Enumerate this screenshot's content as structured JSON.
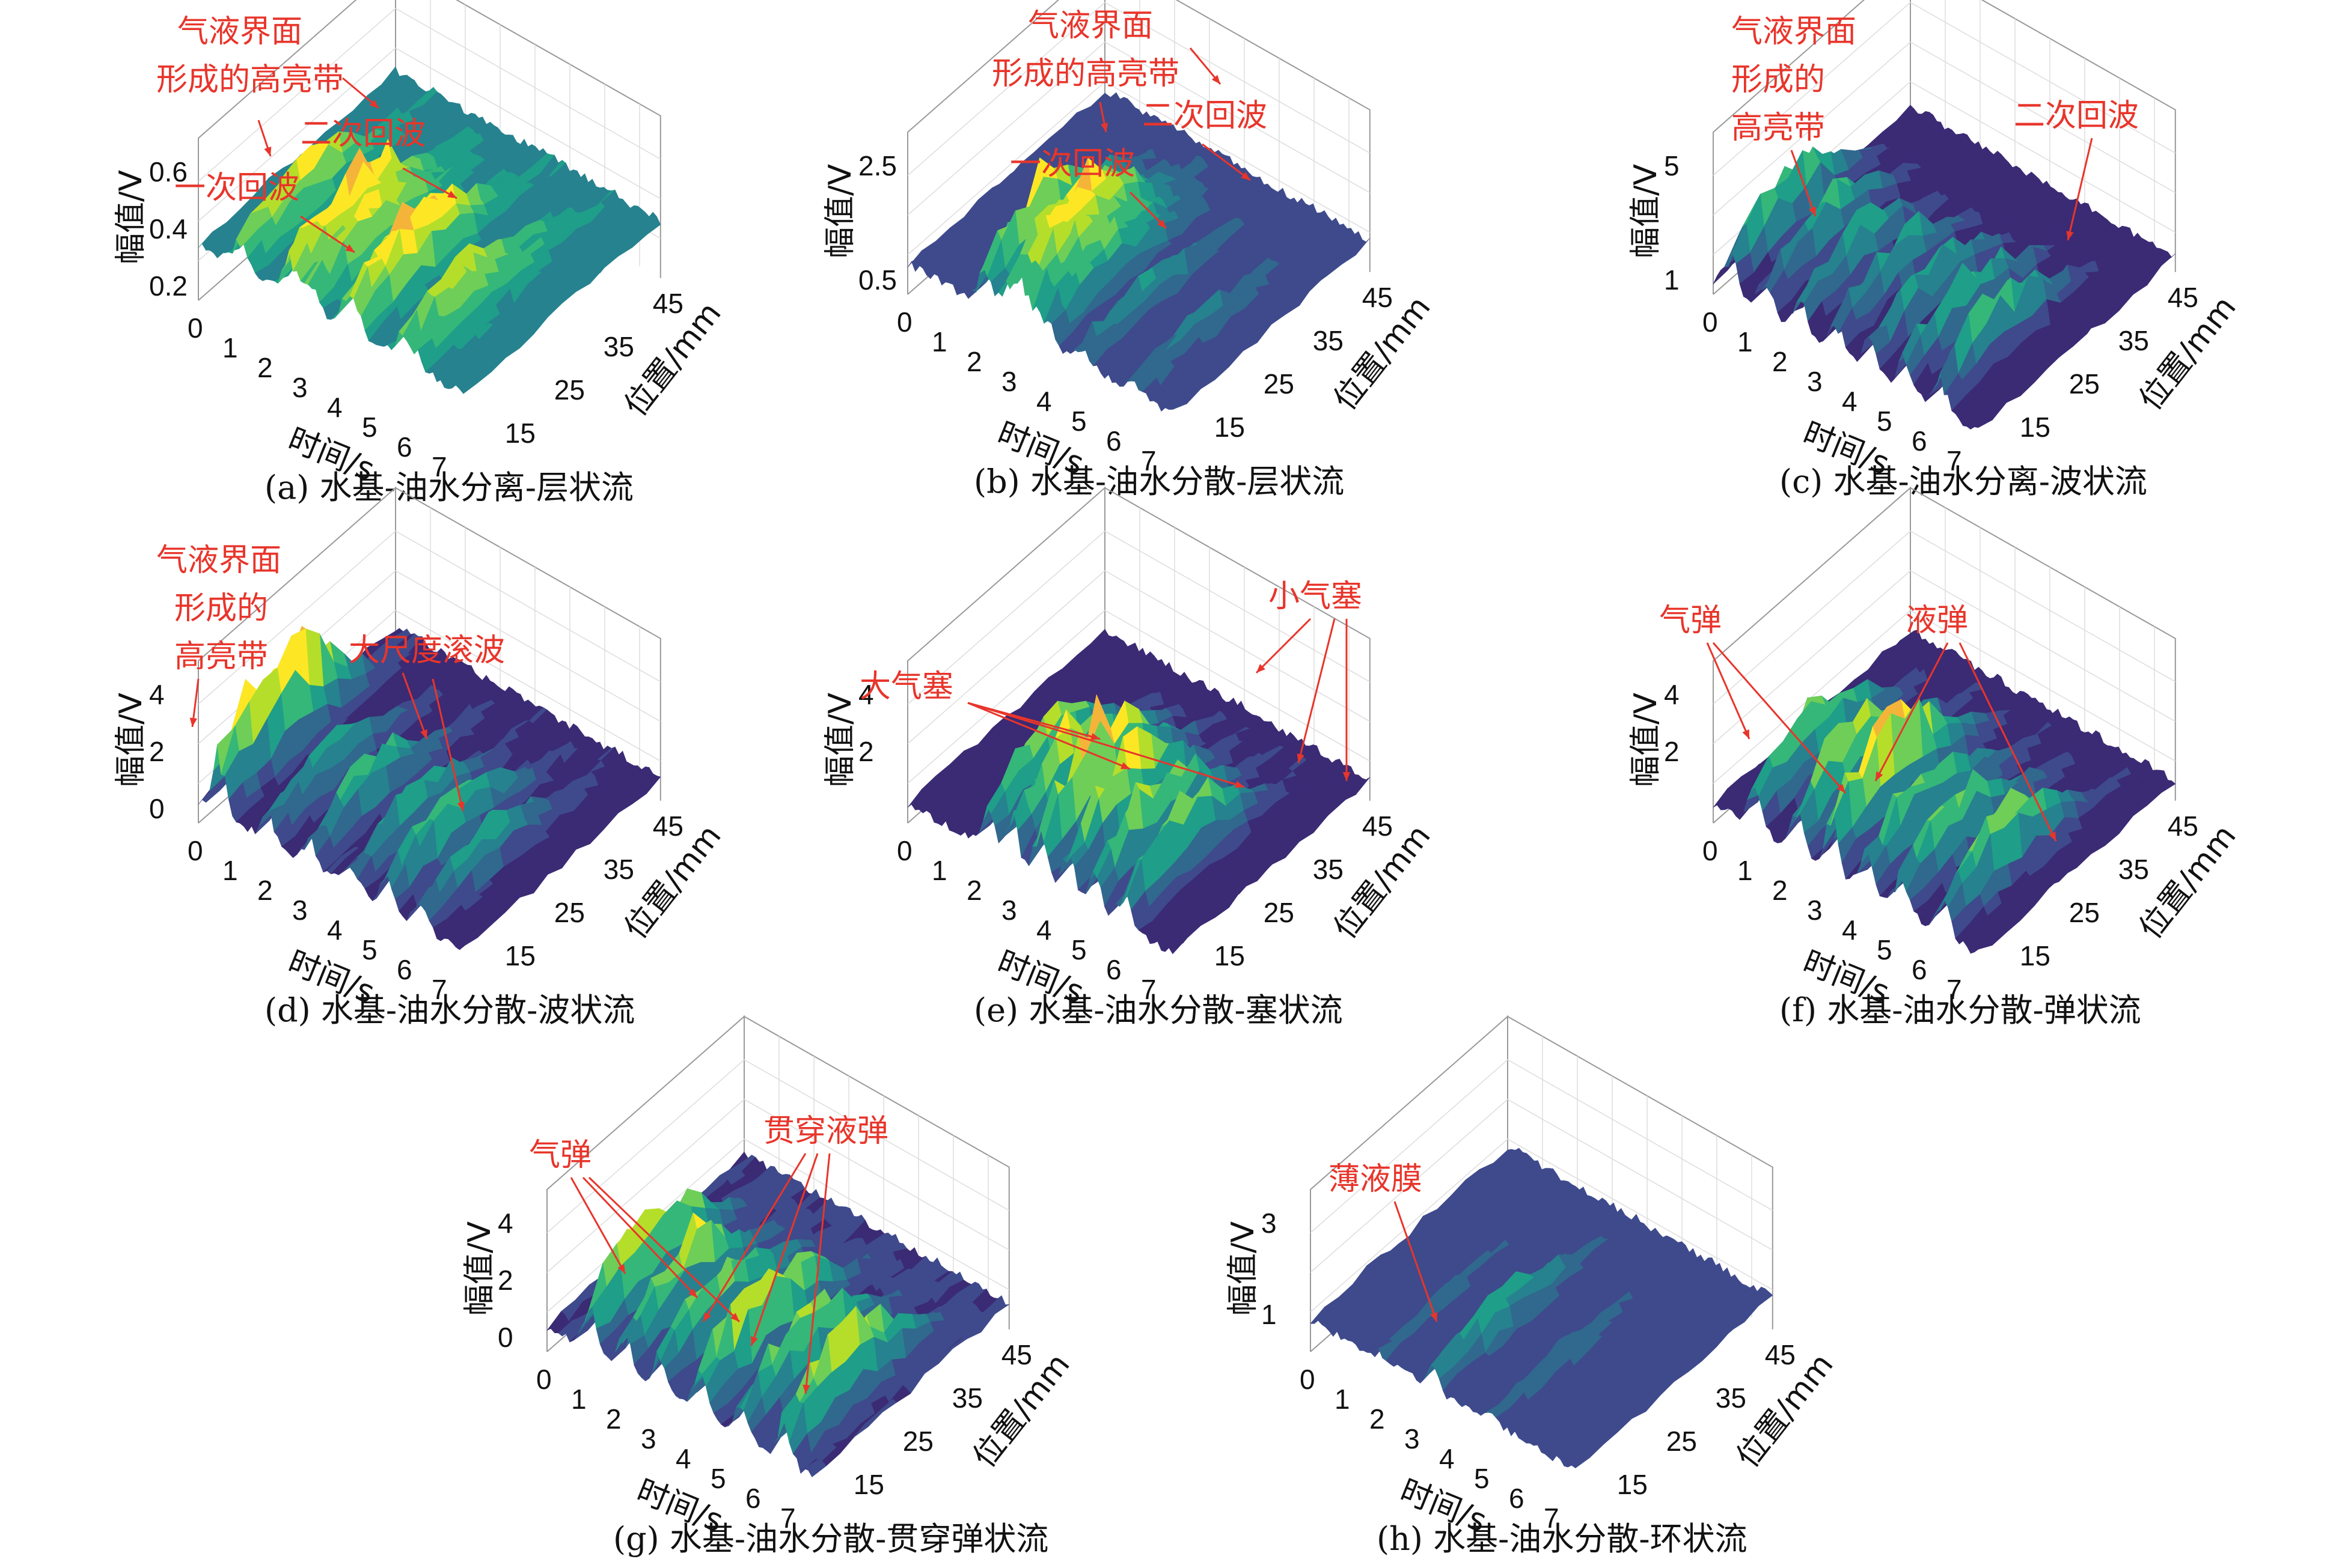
{
  "chart_data": [
    {
      "id": "a",
      "type": "surface3d",
      "caption": "(a) 水基-油水分离-层状流",
      "xlabel": "时间/s",
      "ylabel": "位置/mm",
      "zlabel": "幅值/V",
      "xticks": [
        "0",
        "1",
        "2",
        "3",
        "4",
        "5",
        "6",
        "7"
      ],
      "yticks": [
        "15",
        "25",
        "35",
        "45"
      ],
      "zticks": [
        "0.2",
        "0.4",
        "0.6"
      ],
      "zmax": 0.6,
      "zmin": 0.2,
      "floor": 0.35,
      "peaks": [
        [
          1.2,
          0.55
        ],
        [
          2.6,
          0.6
        ],
        [
          3.3,
          0.5
        ],
        [
          4.5,
          0.55
        ],
        [
          5.8,
          0.5
        ],
        [
          3.0,
          0.45
        ],
        [
          4.2,
          0.5
        ],
        [
          6.2,
          0.45
        ]
      ],
      "annotations": [
        {
          "text": "气液界面"
        },
        {
          "text": "形成的高亮带"
        },
        {
          "text": "二次回波"
        },
        {
          "text": "一次回波"
        }
      ]
    },
    {
      "id": "b",
      "type": "surface3d",
      "caption": "(b) 水基-油水分散-层状流",
      "xlabel": "时间/s",
      "ylabel": "位置/mm",
      "zlabel": "幅值/V",
      "xticks": [
        "0",
        "1",
        "2",
        "3",
        "4",
        "5",
        "6",
        "7"
      ],
      "yticks": [
        "15",
        "25",
        "35",
        "45"
      ],
      "zticks": [
        "0.5",
        "2.5"
      ],
      "zmax": 2.5,
      "zmin": 0.5,
      "floor": 0.8,
      "peaks": [
        [
          2.2,
          2.2
        ],
        [
          2.8,
          2.0
        ],
        [
          3.2,
          2.3
        ],
        [
          4.0,
          1.6
        ],
        [
          5.0,
          1.4
        ],
        [
          6.5,
          1.2
        ],
        [
          3.6,
          1.8
        ]
      ],
      "annotations": [
        {
          "text": "气液界面"
        },
        {
          "text": "形成的高亮带"
        },
        {
          "text": "二次回波"
        },
        {
          "text": "一次回波"
        }
      ]
    },
    {
      "id": "c",
      "type": "surface3d",
      "caption": "(c) 水基-油水分离-波状流",
      "xlabel": "时间/s",
      "ylabel": "位置/mm",
      "zlabel": "幅值/V",
      "xticks": [
        "0",
        "1",
        "2",
        "3",
        "4",
        "5",
        "6",
        "7"
      ],
      "yticks": [
        "15",
        "25",
        "35",
        "45"
      ],
      "zticks": [
        "1",
        "5"
      ],
      "zmax": 5,
      "zmin": 1,
      "floor": 1.0,
      "peaks": [
        [
          0.5,
          3.5
        ],
        [
          1.5,
          3.2
        ],
        [
          2.5,
          3.0
        ],
        [
          3.5,
          3.0
        ],
        [
          4.5,
          3.1
        ],
        [
          5.5,
          3.3
        ],
        [
          6.5,
          3.4
        ]
      ],
      "annotations": [
        {
          "text": "气液界面"
        },
        {
          "text": "形成的"
        },
        {
          "text": "高亮带"
        },
        {
          "text": "二次回波"
        }
      ]
    },
    {
      "id": "d",
      "type": "surface3d",
      "caption": "(d) 水基-油水分散-波状流",
      "xlabel": "时间/s",
      "ylabel": "位置/mm",
      "zlabel": "幅值/V",
      "xticks": [
        "0",
        "1",
        "2",
        "3",
        "4",
        "5",
        "6",
        "7"
      ],
      "yticks": [
        "15",
        "25",
        "35",
        "45"
      ],
      "zticks": [
        "0",
        "2",
        "4"
      ],
      "zmax": 4,
      "zmin": 0,
      "floor": 0.3,
      "peaks": [
        [
          0.6,
          4.2
        ],
        [
          2.0,
          2.0
        ],
        [
          3.2,
          2.2
        ],
        [
          4.4,
          2.0
        ],
        [
          5.4,
          2.6
        ],
        [
          6.4,
          2.0
        ]
      ],
      "annotations": [
        {
          "text": "气液界面"
        },
        {
          "text": "形成的"
        },
        {
          "text": "高亮带"
        },
        {
          "text": "大尺度滚波"
        }
      ]
    },
    {
      "id": "e",
      "type": "surface3d",
      "caption": "(e) 水基-油水分散-塞状流",
      "xlabel": "时间/s",
      "ylabel": "位置/mm",
      "zlabel": "幅值/V",
      "xticks": [
        "0",
        "1",
        "2",
        "3",
        "4",
        "5",
        "6",
        "7"
      ],
      "yticks": [
        "15",
        "25",
        "35",
        "45"
      ],
      "zticks": [
        "2",
        "4"
      ],
      "zmax": 4,
      "zmin": 0,
      "floor": 0.2,
      "peaks": [
        [
          2.3,
          3.0
        ],
        [
          3.0,
          3.4
        ],
        [
          3.8,
          4.0
        ],
        [
          4.6,
          3.2
        ],
        [
          5.4,
          3.0
        ],
        [
          6.2,
          2.8
        ]
      ],
      "annotations": [
        {
          "text": "小气塞"
        },
        {
          "text": "大气塞"
        }
      ]
    },
    {
      "id": "f",
      "type": "surface3d",
      "caption": "(f) 水基-油水分散-弹状流",
      "xlabel": "时间/s",
      "ylabel": "位置/mm",
      "zlabel": "幅值/V",
      "xticks": [
        "0",
        "1",
        "2",
        "3",
        "4",
        "5",
        "6",
        "7"
      ],
      "yticks": [
        "15",
        "25",
        "35",
        "45"
      ],
      "zticks": [
        "2",
        "4"
      ],
      "zmax": 4,
      "zmin": 0,
      "floor": 0.2,
      "peaks": [
        [
          1.2,
          2.8
        ],
        [
          2.4,
          3.2
        ],
        [
          3.4,
          4.0
        ],
        [
          4.4,
          3.0
        ],
        [
          5.4,
          2.6
        ],
        [
          6.6,
          3.0
        ]
      ],
      "annotations": [
        {
          "text": "气弹"
        },
        {
          "text": "液弹"
        }
      ]
    },
    {
      "id": "g",
      "type": "surface3d",
      "caption": "(g) 水基-油水分散-贯穿弹状流",
      "xlabel": "时间/s",
      "ylabel": "位置/mm",
      "zlabel": "幅值/V",
      "xticks": [
        "0",
        "1",
        "2",
        "3",
        "4",
        "5",
        "6",
        "7"
      ],
      "yticks": [
        "15",
        "25",
        "35",
        "45"
      ],
      "zticks": [
        "0",
        "2",
        "4"
      ],
      "zmax": 4,
      "zmin": 0,
      "floor": 0.4,
      "peaks": [
        [
          1.2,
          3.6
        ],
        [
          2.2,
          3.2
        ],
        [
          3.2,
          3.0
        ],
        [
          4.4,
          3.8
        ],
        [
          5.6,
          3.0
        ],
        [
          6.8,
          3.4
        ]
      ],
      "annotations": [
        {
          "text": "气弹"
        },
        {
          "text": "贯穿液弹"
        }
      ]
    },
    {
      "id": "h",
      "type": "surface3d",
      "caption": "(h) 水基-油水分散-环状流",
      "xlabel": "时间/s",
      "ylabel": "位置/mm",
      "zlabel": "幅值/V",
      "xticks": [
        "0",
        "1",
        "2",
        "3",
        "4",
        "5",
        "6",
        "7"
      ],
      "yticks": [
        "15",
        "25",
        "35",
        "45"
      ],
      "zticks": [
        "1",
        "3"
      ],
      "zmax": 3,
      "zmin": 0.5,
      "floor": 0.9,
      "peaks": [
        [
          3.5,
          1.8
        ],
        [
          5.2,
          1.2
        ],
        [
          2.0,
          1.1
        ]
      ],
      "annotations": [
        {
          "text": "薄液膜"
        }
      ]
    }
  ]
}
